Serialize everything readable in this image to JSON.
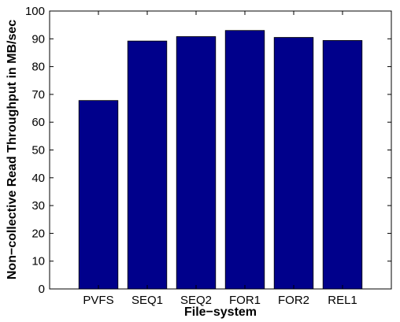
{
  "chart_data": {
    "type": "bar",
    "categories": [
      "PVFS",
      "SEQ1",
      "SEQ2",
      "FOR1",
      "FOR2",
      "REL1"
    ],
    "values": [
      67.8,
      89.2,
      90.8,
      93.0,
      90.5,
      89.4
    ],
    "xlabel": "File−system",
    "ylabel": "Non−collective Read Throughput in MB/sec",
    "ylim": [
      0,
      100
    ],
    "yticks": [
      0,
      10,
      20,
      30,
      40,
      50,
      60,
      70,
      80,
      90,
      100
    ],
    "grid": false,
    "legend": "none",
    "colors": {
      "bar": "#00008b",
      "bar_edge": "#000000",
      "axis": "#000000"
    }
  }
}
